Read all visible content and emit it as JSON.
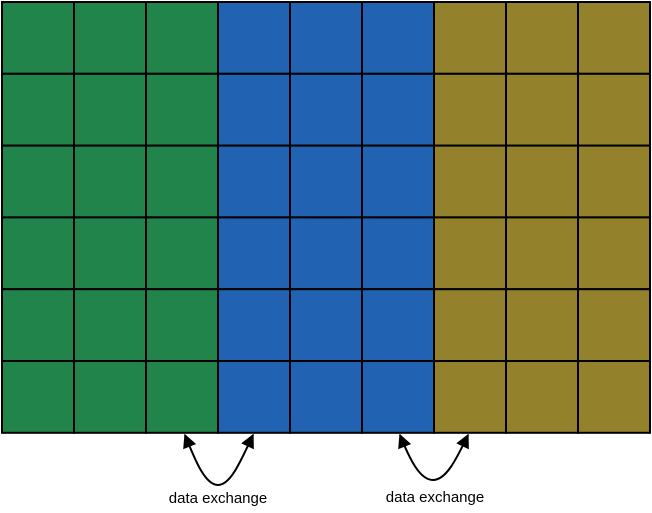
{
  "diagram": {
    "rows": 6,
    "column_groups": [
      {
        "columns": 3,
        "color": "#21844B"
      },
      {
        "columns": 3,
        "color": "#2163B2"
      },
      {
        "columns": 3,
        "color": "#93822B"
      }
    ],
    "grid_line_color": "#000000",
    "labels": [
      {
        "text": "data exchange"
      },
      {
        "text": "data exchange"
      }
    ]
  }
}
